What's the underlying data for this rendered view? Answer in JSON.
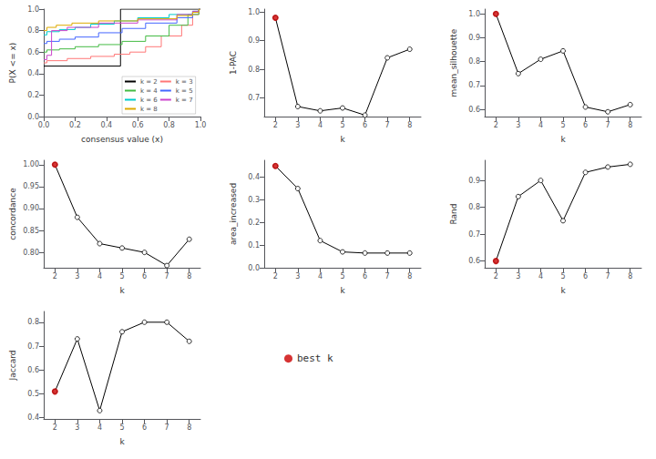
{
  "chart_data": [
    {
      "type": "line",
      "xlabel": "consensus value (x)",
      "ylabel": "P(X <= x)",
      "xlim": [
        0,
        1
      ],
      "xticks": [
        {
          "value": 0,
          "label": "0.0"
        },
        0.2,
        0.4,
        0.6,
        0.8,
        {
          "value": 1,
          "label": "1.0"
        }
      ],
      "ylim": [
        0,
        1
      ],
      "yticks": [
        {
          "value": 0,
          "label": "0.0"
        },
        0.2,
        0.4,
        0.6,
        0.8,
        {
          "value": 1,
          "label": "1.0"
        }
      ],
      "grid": false,
      "legend": "lower right",
      "series": [
        {
          "name": "k = 2",
          "color": "black",
          "line_style": "steps-post",
          "x": [
            0.0,
            0.49,
            0.49,
            1.0
          ],
          "values": [
            0.47,
            0.47,
            1.0,
            1.0
          ]
        },
        {
          "name": "k = 3",
          "color": "#FF7777",
          "line_style": "steps-post",
          "x": [
            0.0,
            0.02,
            0.15,
            0.3,
            0.45,
            0.55,
            0.65,
            0.75,
            0.88,
            0.95,
            0.99,
            1.0
          ],
          "values": [
            0.5,
            0.52,
            0.54,
            0.56,
            0.58,
            0.6,
            0.65,
            0.75,
            0.85,
            0.95,
            1.0,
            1.0
          ]
        },
        {
          "name": "k = 4",
          "color": "#44BB44",
          "line_style": "steps-post",
          "x": [
            0.0,
            0.02,
            0.1,
            0.2,
            0.35,
            0.5,
            0.65,
            0.8,
            0.92,
            0.99,
            1.0
          ],
          "values": [
            0.6,
            0.62,
            0.63,
            0.65,
            0.67,
            0.7,
            0.75,
            0.85,
            0.95,
            1.0,
            1.0
          ]
        },
        {
          "name": "k = 5",
          "color": "#4466FF",
          "line_style": "steps-post",
          "x": [
            0.0,
            0.02,
            0.1,
            0.2,
            0.35,
            0.5,
            0.65,
            0.85,
            0.95,
            0.99,
            1.0
          ],
          "values": [
            0.68,
            0.7,
            0.72,
            0.74,
            0.78,
            0.82,
            0.87,
            0.92,
            0.97,
            1.0,
            1.0
          ]
        },
        {
          "name": "k = 6",
          "color": "#00CCCC",
          "line_style": "steps-post",
          "x": [
            0.0,
            0.02,
            0.1,
            0.2,
            0.3,
            0.45,
            0.6,
            0.8,
            0.95,
            0.99,
            1.0
          ],
          "values": [
            0.76,
            0.79,
            0.81,
            0.83,
            0.86,
            0.89,
            0.92,
            0.95,
            0.98,
            1.0,
            1.0
          ]
        },
        {
          "name": "k = 7",
          "color": "#CC44CC",
          "line_style": "steps-post",
          "x": [
            0.0,
            0.02,
            0.05,
            0.15,
            0.35,
            0.6,
            0.85,
            0.95,
            0.99,
            1.0
          ],
          "values": [
            0.53,
            0.57,
            0.8,
            0.83,
            0.87,
            0.9,
            0.95,
            0.98,
            1.0,
            1.0
          ]
        },
        {
          "name": "k = 8",
          "color": "#DDAA00",
          "line_style": "steps-post",
          "x": [
            0.0,
            0.02,
            0.08,
            0.18,
            0.35,
            0.6,
            0.85,
            0.95,
            0.99,
            1.0
          ],
          "values": [
            0.8,
            0.83,
            0.85,
            0.87,
            0.89,
            0.91,
            0.94,
            0.97,
            1.0,
            1.0
          ]
        }
      ]
    },
    {
      "type": "line",
      "xlabel": "k",
      "ylabel": "1-PAC",
      "x": [
        2,
        3,
        4,
        5,
        6,
        7,
        8
      ],
      "xlim": [
        1.5,
        8.5
      ],
      "xticks": [
        2,
        3,
        4,
        5,
        6,
        7,
        8
      ],
      "ylim": [
        0.635,
        1.01
      ],
      "yticks": [
        0.7,
        0.8,
        0.9,
        {
          "value": 1,
          "label": "1.0"
        }
      ],
      "grid": false,
      "series": [
        {
          "color": "black",
          "marker": "circle",
          "line_style": "solid",
          "values": [
            0.98,
            0.67,
            0.655,
            0.665,
            0.64,
            0.84,
            0.87
          ]
        },
        {
          "name": "best k",
          "type": "scatter",
          "color": "#CC0000",
          "marker": "circle",
          "values": [
            0.98,
            null,
            null,
            null,
            null,
            null,
            null
          ]
        }
      ]
    },
    {
      "type": "line",
      "xlabel": "k",
      "ylabel": "mean_silhouette",
      "x": [
        2,
        3,
        4,
        5,
        6,
        7,
        8
      ],
      "xlim": [
        1.5,
        8.5
      ],
      "xticks": [
        2,
        3,
        4,
        5,
        6,
        7,
        8
      ],
      "ylim": [
        0.57,
        1.02
      ],
      "yticks": [
        0.6,
        0.7,
        0.8,
        0.9,
        {
          "value": 1,
          "label": "1.0"
        }
      ],
      "grid": false,
      "series": [
        {
          "color": "black",
          "marker": "circle",
          "line_style": "solid",
          "values": [
            1.0,
            0.75,
            0.81,
            0.845,
            0.61,
            0.59,
            0.62
          ]
        },
        {
          "name": "best k",
          "type": "scatter",
          "color": "#CC0000",
          "marker": "circle",
          "values": [
            1.0,
            null,
            null,
            null,
            null,
            null,
            null
          ]
        }
      ]
    },
    {
      "type": "line",
      "xlabel": "k",
      "ylabel": "concordance",
      "x": [
        2,
        3,
        4,
        5,
        6,
        7,
        8
      ],
      "xlim": [
        1.5,
        8.5
      ],
      "xticks": [
        2,
        3,
        4,
        5,
        6,
        7,
        8
      ],
      "ylim": [
        0.765,
        1.01
      ],
      "yticks": [
        {
          "value": 0.8,
          "label": "0.80"
        },
        0.85,
        {
          "value": 0.9,
          "label": "0.90"
        },
        0.95,
        {
          "value": 1,
          "label": "1.00"
        }
      ],
      "grid": false,
      "series": [
        {
          "color": "black",
          "marker": "circle",
          "line_style": "solid",
          "values": [
            1.0,
            0.88,
            0.82,
            0.81,
            0.8,
            0.77,
            0.83
          ]
        },
        {
          "name": "best k",
          "type": "scatter",
          "color": "#CC0000",
          "marker": "circle",
          "values": [
            1.0,
            null,
            null,
            null,
            null,
            null,
            null
          ]
        }
      ]
    },
    {
      "type": "line",
      "xlabel": "k",
      "ylabel": "area_increased",
      "x": [
        2,
        3,
        4,
        5,
        6,
        7,
        8
      ],
      "xlim": [
        1.5,
        8.5
      ],
      "xticks": [
        2,
        3,
        4,
        5,
        6,
        7,
        8
      ],
      "ylim": [
        0.0,
        0.475
      ],
      "yticks": [
        {
          "value": 0,
          "label": "0.0"
        },
        0.1,
        0.2,
        0.3,
        0.4
      ],
      "grid": false,
      "series": [
        {
          "color": "black",
          "marker": "circle",
          "line_style": "solid",
          "values": [
            0.45,
            0.35,
            0.12,
            0.07,
            0.065,
            0.065,
            0.065
          ]
        },
        {
          "name": "best k",
          "type": "scatter",
          "color": "#CC0000",
          "marker": "circle",
          "values": [
            0.45,
            null,
            null,
            null,
            null,
            null,
            null
          ]
        }
      ]
    },
    {
      "type": "line",
      "xlabel": "k",
      "ylabel": "Rand",
      "x": [
        2,
        3,
        4,
        5,
        6,
        7,
        8
      ],
      "xlim": [
        1.5,
        8.5
      ],
      "xticks": [
        2,
        3,
        4,
        5,
        6,
        7,
        8
      ],
      "ylim": [
        0.575,
        0.975
      ],
      "yticks": [
        0.6,
        0.7,
        0.8,
        0.9
      ],
      "grid": false,
      "series": [
        {
          "color": "black",
          "marker": "circle",
          "line_style": "solid",
          "values": [
            0.6,
            0.84,
            0.9,
            0.75,
            0.93,
            0.95,
            0.96
          ]
        },
        {
          "name": "best k",
          "type": "scatter",
          "color": "#CC0000",
          "marker": "circle",
          "values": [
            0.6,
            null,
            null,
            null,
            null,
            null,
            null
          ]
        }
      ]
    },
    {
      "type": "line",
      "xlabel": "k",
      "ylabel": "Jaccard",
      "x": [
        2,
        3,
        4,
        5,
        6,
        7,
        8
      ],
      "xlim": [
        1.5,
        8.5
      ],
      "xticks": [
        2,
        3,
        4,
        5,
        6,
        7,
        8
      ],
      "ylim": [
        0.395,
        0.845
      ],
      "yticks": [
        0.4,
        0.5,
        0.6,
        0.7,
        0.8
      ],
      "grid": false,
      "series": [
        {
          "color": "black",
          "marker": "circle",
          "line_style": "solid",
          "values": [
            0.51,
            0.73,
            0.43,
            0.76,
            0.8,
            0.8,
            0.72
          ]
        },
        {
          "name": "best k",
          "type": "scatter",
          "color": "#CC0000",
          "marker": "circle",
          "values": [
            0.51,
            null,
            null,
            null,
            null,
            null,
            null
          ]
        }
      ]
    }
  ]
}
